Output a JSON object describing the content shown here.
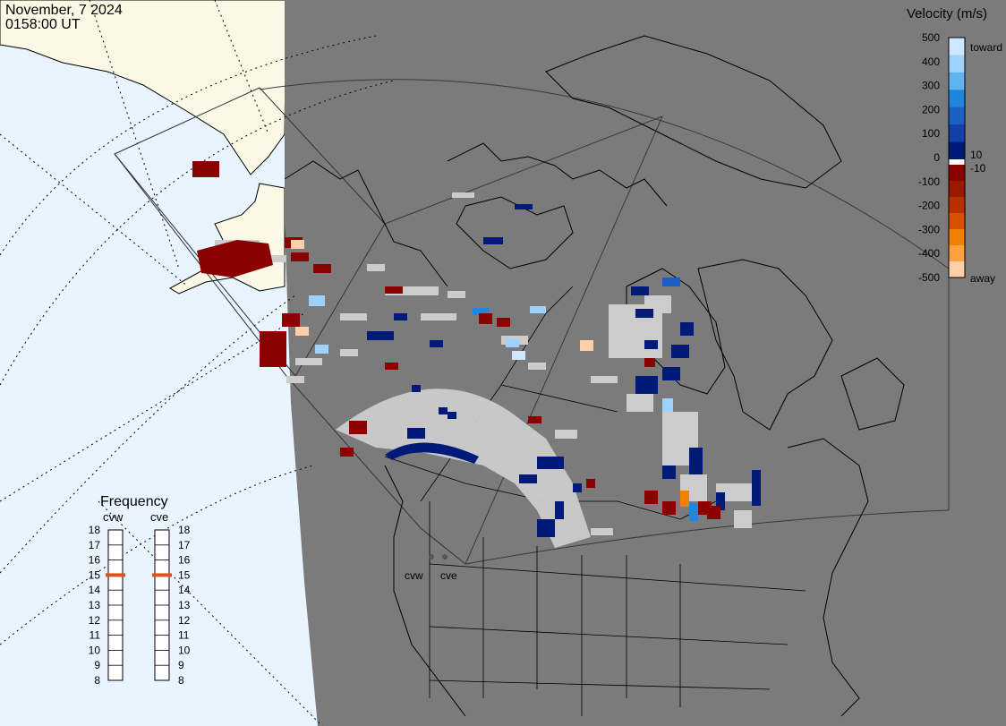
{
  "header": {
    "date": "November, 7 2024",
    "time": "0158:00 UT"
  },
  "colorbar": {
    "title": "Velocity (m/s)",
    "ticks": [
      "500",
      "400",
      "300",
      "200",
      "100",
      "0",
      "-100",
      "-200",
      "-300",
      "-400",
      "-500"
    ],
    "label_toward": "toward",
    "label_away": "away",
    "label_pos": "10",
    "label_neg": "-10",
    "colors": [
      "#cfe8ff",
      "#9ed3ff",
      "#5fb4f0",
      "#1f86e0",
      "#1a5fc4",
      "#123fa8",
      "#001a7a",
      "#8b0000",
      "#9a1a00",
      "#b83000",
      "#d85000",
      "#f08000",
      "#ffa040",
      "#ffd0a8"
    ]
  },
  "frequency": {
    "title": "Frequency",
    "radars": [
      {
        "name": "cvw",
        "value": 15
      },
      {
        "name": "cve",
        "value": 15
      }
    ],
    "scale": [
      "18",
      "17",
      "16",
      "15",
      "14",
      "13",
      "12",
      "11",
      "10",
      "9",
      "8"
    ]
  },
  "map": {
    "ocean_color": "#e8f4ff",
    "land_color": "#fbf9e6",
    "night_color": "#7b7b7b",
    "site_labels": [
      "cvw",
      "cve"
    ]
  }
}
